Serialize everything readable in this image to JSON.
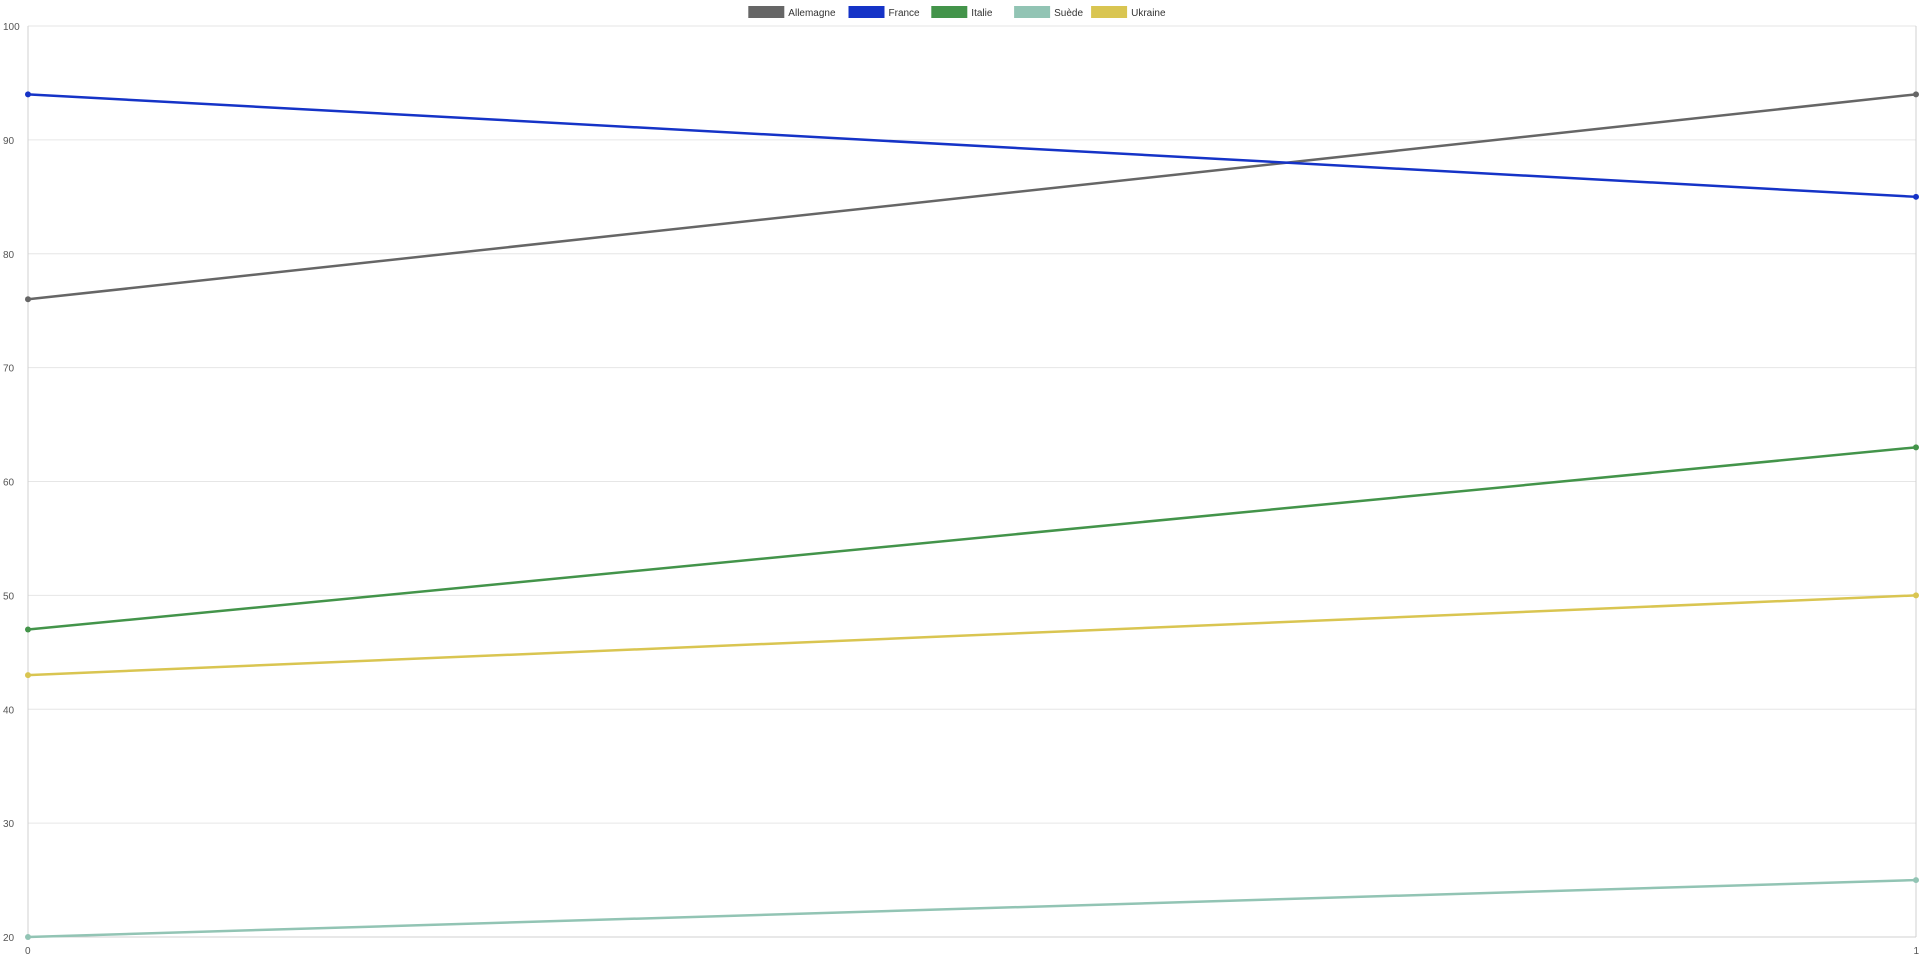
{
  "chart_data": {
    "type": "line",
    "x": [
      0,
      1
    ],
    "xticks": [
      "0",
      "1"
    ],
    "ylim": [
      20,
      100
    ],
    "yticks": [
      20,
      30,
      40,
      50,
      60,
      70,
      80,
      90,
      100
    ],
    "grid": true,
    "legend_position": "top-center",
    "series": [
      {
        "name": "Allemagne",
        "color": "#666666",
        "values": [
          76,
          94
        ]
      },
      {
        "name": "France",
        "color": "#1533c7",
        "values": [
          94,
          85
        ]
      },
      {
        "name": "Italie",
        "color": "#43944a",
        "values": [
          47,
          63
        ]
      },
      {
        "name": "Suède",
        "color": "#92c4b4",
        "values": [
          20,
          25
        ]
      },
      {
        "name": "Ukraine",
        "color": "#d9c551",
        "values": [
          43,
          50
        ]
      }
    ]
  }
}
